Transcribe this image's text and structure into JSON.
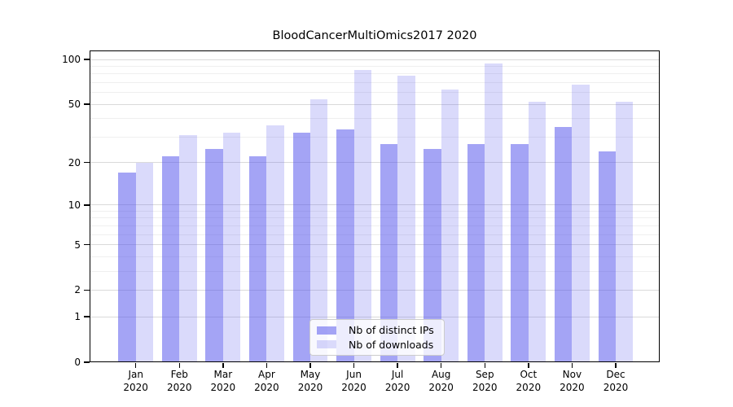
{
  "chart_data": {
    "type": "bar",
    "title": "BloodCancerMultiOmics2017 2020",
    "xlabel": "",
    "ylabel": "",
    "categories": [
      "Jan",
      "Feb",
      "Mar",
      "Apr",
      "May",
      "Jun",
      "Jul",
      "Aug",
      "Sep",
      "Oct",
      "Nov",
      "Dec"
    ],
    "x_year": "2020",
    "series": [
      {
        "name": "Nb of distinct IPs",
        "color": "#5050eb",
        "alpha": 0.52,
        "values": [
          17,
          22,
          25,
          22,
          32,
          34,
          27,
          25,
          27,
          27,
          35,
          24
        ]
      },
      {
        "name": "Nb of downloads",
        "color": "#5050eb",
        "alpha": 0.21,
        "values": [
          20,
          31,
          32,
          36,
          54,
          85,
          78,
          63,
          94,
          52,
          68,
          52
        ]
      }
    ],
    "yscale": "log1p",
    "ylim": [
      0,
      115
    ],
    "yticks": [
      0,
      1,
      2,
      5,
      10,
      20,
      50,
      100
    ],
    "minor_gridlines": [
      3,
      4,
      6,
      7,
      8,
      9,
      30,
      40,
      60,
      70,
      80,
      90
    ],
    "grid": true,
    "legend_position": "lower center"
  }
}
